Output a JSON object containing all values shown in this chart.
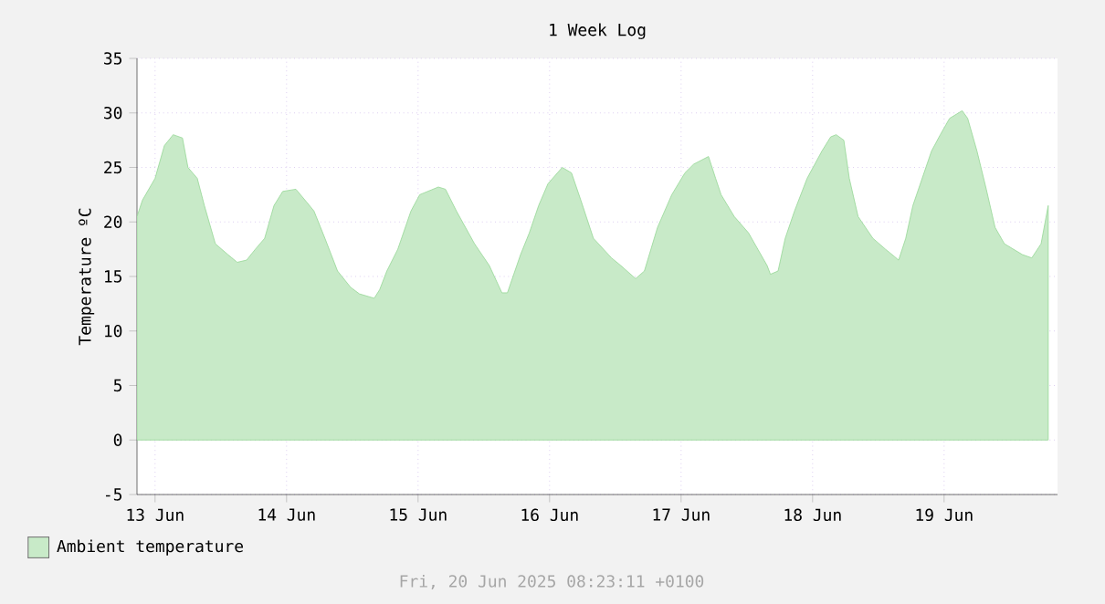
{
  "chart_data": {
    "type": "area",
    "title": "1 Week Log",
    "ylabel": "Temperature ºC",
    "x": [
      "2025-06-12T20:42",
      "2025-06-12T21:42",
      "2025-06-13T00:00",
      "2025-06-13T01:42",
      "2025-06-13T03:18",
      "2025-06-13T05:00",
      "2025-06-13T06:00",
      "2025-06-13T07:42",
      "2025-06-13T09:00",
      "2025-06-13T11:00",
      "2025-06-13T13:18",
      "2025-06-13T15:00",
      "2025-06-13T16:42",
      "2025-06-13T18:18",
      "2025-06-13T20:00",
      "2025-06-13T21:42",
      "2025-06-13T23:18",
      "2025-06-14T01:42",
      "2025-06-14T03:42",
      "2025-06-14T05:00",
      "2025-06-14T07:00",
      "2025-06-14T09:18",
      "2025-06-14T11:42",
      "2025-06-14T13:18",
      "2025-06-14T16:00",
      "2025-06-14T17:00",
      "2025-06-14T18:18",
      "2025-06-14T20:18",
      "2025-06-14T22:42",
      "2025-06-15T00:18",
      "2025-06-15T03:42",
      "2025-06-15T05:00",
      "2025-06-15T07:00",
      "2025-06-15T10:18",
      "2025-06-15T13:00",
      "2025-06-15T15:18",
      "2025-06-15T16:18",
      "2025-06-15T18:42",
      "2025-06-15T20:18",
      "2025-06-15T22:00",
      "2025-06-15T23:42",
      "2025-06-16T02:18",
      "2025-06-16T04:00",
      "2025-06-16T05:42",
      "2025-06-16T08:00",
      "2025-06-16T11:18",
      "2025-06-16T13:00",
      "2025-06-16T15:42",
      "2025-06-16T17:18",
      "2025-06-16T19:42",
      "2025-06-16T22:18",
      "2025-06-17T00:42",
      "2025-06-17T02:18",
      "2025-06-17T05:00",
      "2025-06-17T06:18",
      "2025-06-17T07:18",
      "2025-06-17T09:42",
      "2025-06-17T12:18",
      "2025-06-17T14:00",
      "2025-06-17T15:42",
      "2025-06-17T16:18",
      "2025-06-17T17:42",
      "2025-06-17T19:00",
      "2025-06-17T20:42",
      "2025-06-17T23:00",
      "2025-06-18T01:42",
      "2025-06-18T03:18",
      "2025-06-18T04:18",
      "2025-06-18T05:42",
      "2025-06-18T06:42",
      "2025-06-18T08:18",
      "2025-06-18T11:00",
      "2025-06-18T13:18",
      "2025-06-18T15:00",
      "2025-06-18T15:42",
      "2025-06-18T17:00",
      "2025-06-18T18:18",
      "2025-06-18T20:00",
      "2025-06-18T21:42",
      "2025-06-18T23:18",
      "2025-06-19T01:00",
      "2025-06-19T03:18",
      "2025-06-19T04:18",
      "2025-06-19T06:00",
      "2025-06-19T07:42",
      "2025-06-19T09:18",
      "2025-06-19T11:00",
      "2025-06-19T14:18",
      "2025-06-19T16:00",
      "2025-06-19T17:42",
      "2025-06-19T19:00"
    ],
    "series": [
      {
        "name": "Ambient temperature",
        "color": "#c8eac8",
        "values": [
          20.5,
          22,
          24,
          27,
          28,
          27.7,
          25,
          24,
          21.5,
          18,
          17,
          16.3,
          16.5,
          17.5,
          18.5,
          21.5,
          22.8,
          23,
          21.8,
          21,
          18.5,
          15.5,
          14,
          13.4,
          13,
          13.8,
          15.5,
          17.5,
          21,
          22.5,
          23.2,
          23,
          21,
          18,
          16,
          13.5,
          13.5,
          17,
          19,
          21.5,
          23.5,
          25,
          24.5,
          22,
          18.5,
          16.7,
          16,
          14.8,
          15.5,
          19.5,
          22.5,
          24.5,
          25.3,
          26,
          24,
          22.5,
          20.5,
          19,
          17.5,
          16,
          15.2,
          15.5,
          18.5,
          21,
          24,
          26.5,
          27.8,
          28,
          27.5,
          24,
          20.5,
          18.5,
          17.5,
          16.8,
          16.5,
          18.5,
          21.5,
          24,
          26.5,
          28,
          29.5,
          30.2,
          29.5,
          26.5,
          23,
          19.5,
          18,
          17,
          16.7,
          18,
          21.5
        ]
      }
    ],
    "xlim": [
      "2025-06-12T20:42",
      "2025-06-19T20:42"
    ],
    "xticks": [
      {
        "value": "2025-06-13",
        "label": "13 Jun"
      },
      {
        "value": "2025-06-14",
        "label": "14 Jun"
      },
      {
        "value": "2025-06-15",
        "label": "15 Jun"
      },
      {
        "value": "2025-06-16",
        "label": "16 Jun"
      },
      {
        "value": "2025-06-17",
        "label": "17 Jun"
      },
      {
        "value": "2025-06-18",
        "label": "18 Jun"
      },
      {
        "value": "2025-06-19",
        "label": "19 Jun"
      }
    ],
    "ylim": [
      -5,
      35
    ],
    "yticks": [
      -5,
      0,
      5,
      10,
      15,
      20,
      25,
      30,
      35
    ],
    "grid": true,
    "legend": "bottom left",
    "annotations": [
      "Fri, 20 Jun 2025 08:23:11 +0100"
    ]
  }
}
